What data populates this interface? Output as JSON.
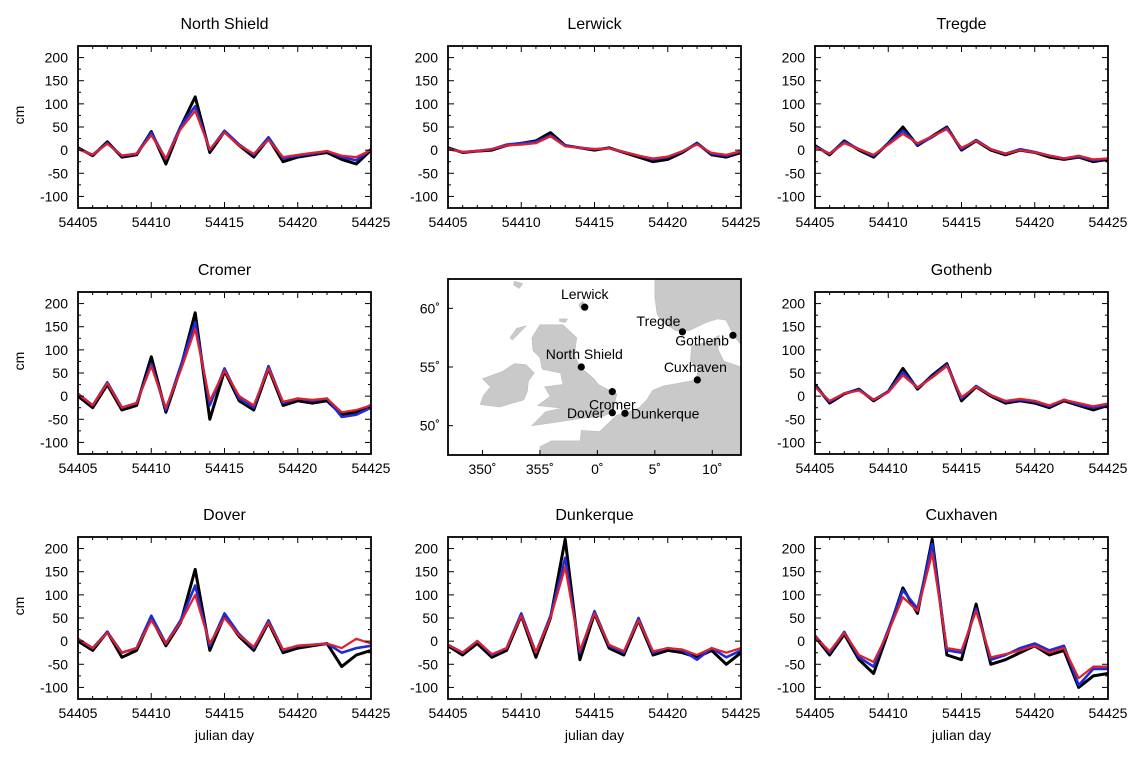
{
  "figure": {
    "ylabel": "cm",
    "xlabel": "julian day"
  },
  "chart_data": [
    {
      "type": "line",
      "title": "North Shield",
      "xlim": [
        54405,
        54425
      ],
      "ylim": [
        -125,
        225
      ],
      "xticks": [
        54405,
        54410,
        54415,
        54420,
        54425
      ],
      "yticks": [
        -100,
        -50,
        0,
        50,
        100,
        150,
        200
      ],
      "x": [
        54405,
        54406,
        54407,
        54408,
        54409,
        54410,
        54411,
        54412,
        54413,
        54414,
        54415,
        54416,
        54417,
        54418,
        54419,
        54420,
        54421,
        54422,
        54423,
        54424,
        54425
      ],
      "series": [
        {
          "values": [
            5,
            -12,
            18,
            -15,
            -10,
            40,
            -30,
            50,
            115,
            -5,
            40,
            10,
            -15,
            25,
            -25,
            -15,
            -10,
            -5,
            -20,
            -30,
            0
          ]
        },
        {
          "values": [
            3,
            -10,
            15,
            -12,
            -8,
            38,
            -20,
            52,
            95,
            0,
            42,
            12,
            -10,
            28,
            -18,
            -12,
            -8,
            -2,
            -15,
            -22,
            2
          ]
        },
        {
          "values": [
            2,
            -10,
            14,
            -12,
            -8,
            32,
            -18,
            45,
            85,
            2,
            38,
            10,
            -8,
            22,
            -15,
            -10,
            -6,
            -2,
            -12,
            -15,
            0
          ]
        }
      ]
    },
    {
      "type": "line",
      "title": "Lerwick",
      "xlim": [
        54405,
        54425
      ],
      "ylim": [
        -125,
        225
      ],
      "xticks": [
        54405,
        54410,
        54415,
        54420,
        54425
      ],
      "yticks": [
        -100,
        -50,
        0,
        50,
        100,
        150,
        200
      ],
      "x": [
        54405,
        54406,
        54407,
        54408,
        54409,
        54410,
        54411,
        54412,
        54413,
        54414,
        54415,
        54416,
        54417,
        54418,
        54419,
        54420,
        54421,
        54422,
        54423,
        54424,
        54425
      ],
      "series": [
        {
          "values": [
            5,
            -5,
            -2,
            0,
            10,
            15,
            20,
            38,
            10,
            5,
            0,
            5,
            -5,
            -15,
            -25,
            -20,
            -5,
            15,
            -10,
            -15,
            -5
          ]
        },
        {
          "values": [
            3,
            -4,
            -2,
            2,
            12,
            15,
            18,
            32,
            10,
            5,
            2,
            4,
            -4,
            -12,
            -20,
            -15,
            -3,
            14,
            -8,
            -12,
            -3
          ]
        },
        {
          "values": [
            2,
            -4,
            -2,
            2,
            10,
            12,
            15,
            30,
            8,
            5,
            2,
            4,
            -4,
            -12,
            -18,
            -14,
            -2,
            12,
            -6,
            -10,
            -2
          ]
        }
      ]
    },
    {
      "type": "line",
      "title": "Tregde",
      "xlim": [
        54405,
        54425
      ],
      "ylim": [
        -125,
        225
      ],
      "xticks": [
        54405,
        54410,
        54415,
        54420,
        54425
      ],
      "yticks": [
        -100,
        -50,
        0,
        50,
        100,
        150,
        200
      ],
      "x": [
        54405,
        54406,
        54407,
        54408,
        54409,
        54410,
        54411,
        54412,
        54413,
        54414,
        54415,
        54416,
        54417,
        54418,
        54419,
        54420,
        54421,
        54422,
        54423,
        54424,
        54425
      ],
      "series": [
        {
          "values": [
            10,
            -10,
            20,
            0,
            -15,
            15,
            50,
            10,
            30,
            50,
            0,
            20,
            0,
            -10,
            0,
            -5,
            -15,
            -20,
            -15,
            -25,
            -20
          ]
        },
        {
          "values": [
            8,
            -8,
            18,
            2,
            -12,
            14,
            42,
            12,
            28,
            48,
            2,
            22,
            2,
            -8,
            2,
            -4,
            -12,
            -18,
            -14,
            -22,
            -18
          ]
        },
        {
          "values": [
            6,
            -8,
            15,
            2,
            -10,
            12,
            35,
            15,
            30,
            45,
            5,
            20,
            2,
            -8,
            0,
            -5,
            -12,
            -18,
            -12,
            -20,
            -18
          ]
        }
      ]
    },
    {
      "type": "line",
      "title": "Cromer",
      "xlim": [
        54405,
        54425
      ],
      "ylim": [
        -125,
        225
      ],
      "xticks": [
        54405,
        54410,
        54415,
        54420,
        54425
      ],
      "yticks": [
        -100,
        -50,
        0,
        50,
        100,
        150,
        200
      ],
      "x": [
        54405,
        54406,
        54407,
        54408,
        54409,
        54410,
        54411,
        54412,
        54413,
        54414,
        54415,
        54416,
        54417,
        54418,
        54419,
        54420,
        54421,
        54422,
        54423,
        54424,
        54425
      ],
      "series": [
        {
          "values": [
            0,
            -25,
            25,
            -30,
            -20,
            85,
            -35,
            60,
            180,
            -50,
            55,
            -10,
            -30,
            60,
            -20,
            -10,
            -15,
            -10,
            -40,
            -35,
            -20
          ]
        },
        {
          "values": [
            5,
            -20,
            30,
            -25,
            -15,
            70,
            -30,
            65,
            160,
            -20,
            60,
            -5,
            -25,
            65,
            -15,
            -5,
            -10,
            -5,
            -45,
            -40,
            -25
          ]
        },
        {
          "values": [
            5,
            -20,
            28,
            -25,
            -15,
            65,
            -25,
            55,
            145,
            -10,
            55,
            0,
            -20,
            60,
            -12,
            -5,
            -8,
            -5,
            -35,
            -30,
            -20
          ]
        }
      ]
    },
    {
      "type": "line",
      "title": "Gothenb",
      "xlim": [
        54405,
        54425
      ],
      "ylim": [
        -125,
        225
      ],
      "xticks": [
        54405,
        54410,
        54415,
        54420,
        54425
      ],
      "yticks": [
        -100,
        -50,
        0,
        50,
        100,
        150,
        200
      ],
      "x": [
        54405,
        54406,
        54407,
        54408,
        54409,
        54410,
        54411,
        54412,
        54413,
        54414,
        54415,
        54416,
        54417,
        54418,
        54419,
        54420,
        54421,
        54422,
        54423,
        54424,
        54425
      ],
      "series": [
        {
          "values": [
            25,
            -15,
            5,
            15,
            -10,
            10,
            60,
            15,
            45,
            70,
            -10,
            20,
            0,
            -15,
            -10,
            -15,
            -25,
            -10,
            -20,
            -30,
            -20
          ]
        },
        {
          "values": [
            22,
            -12,
            6,
            14,
            -8,
            10,
            52,
            18,
            42,
            68,
            -5,
            22,
            2,
            -12,
            -8,
            -12,
            -22,
            -8,
            -18,
            -25,
            -18
          ]
        },
        {
          "values": [
            20,
            -10,
            6,
            12,
            -8,
            8,
            45,
            18,
            40,
            65,
            -2,
            20,
            2,
            -10,
            -6,
            -10,
            -20,
            -8,
            -15,
            -22,
            -16
          ]
        }
      ]
    },
    {
      "type": "line",
      "title": "Dover",
      "xlim": [
        54405,
        54425
      ],
      "ylim": [
        -125,
        225
      ],
      "xticks": [
        54405,
        54410,
        54415,
        54420,
        54425
      ],
      "yticks": [
        -100,
        -50,
        0,
        50,
        100,
        150,
        200
      ],
      "x": [
        54405,
        54406,
        54407,
        54408,
        54409,
        54410,
        54411,
        54412,
        54413,
        54414,
        54415,
        54416,
        54417,
        54418,
        54419,
        54420,
        54421,
        54422,
        54423,
        54424,
        54425
      ],
      "series": [
        {
          "values": [
            0,
            -20,
            20,
            -35,
            -20,
            50,
            -10,
            40,
            155,
            -20,
            55,
            10,
            -20,
            40,
            -25,
            -15,
            -10,
            -5,
            -55,
            -30,
            -20
          ]
        },
        {
          "values": [
            5,
            -15,
            20,
            -25,
            -15,
            55,
            -5,
            45,
            120,
            -10,
            60,
            15,
            -15,
            45,
            -20,
            -10,
            -8,
            -5,
            -25,
            -15,
            -10
          ]
        },
        {
          "values": [
            5,
            -15,
            18,
            -25,
            -15,
            45,
            -5,
            40,
            100,
            -5,
            50,
            12,
            -12,
            40,
            -18,
            -10,
            -8,
            -5,
            -15,
            5,
            -5
          ]
        }
      ]
    },
    {
      "type": "line",
      "title": "Dunkerque",
      "xlim": [
        54405,
        54425
      ],
      "ylim": [
        -125,
        225
      ],
      "xticks": [
        54405,
        54410,
        54415,
        54420,
        54425
      ],
      "yticks": [
        -100,
        -50,
        0,
        50,
        100,
        150,
        200
      ],
      "x": [
        54405,
        54406,
        54407,
        54408,
        54409,
        54410,
        54411,
        54412,
        54413,
        54414,
        54415,
        54416,
        54417,
        54418,
        54419,
        54420,
        54421,
        54422,
        54423,
        54424,
        54425
      ],
      "series": [
        {
          "values": [
            -10,
            -30,
            -5,
            -35,
            -20,
            55,
            -35,
            50,
            220,
            -40,
            60,
            -15,
            -30,
            45,
            -30,
            -20,
            -25,
            -35,
            -20,
            -50,
            -25
          ]
        },
        {
          "values": [
            -8,
            -25,
            0,
            -30,
            -15,
            60,
            -25,
            55,
            180,
            -25,
            65,
            -10,
            -25,
            50,
            -25,
            -15,
            -20,
            -40,
            -15,
            -35,
            -20
          ]
        },
        {
          "values": [
            -8,
            -25,
            0,
            -28,
            -15,
            55,
            -25,
            50,
            160,
            -20,
            60,
            -8,
            -22,
            45,
            -22,
            -15,
            -18,
            -30,
            -15,
            -25,
            -15
          ]
        }
      ]
    },
    {
      "type": "line",
      "title": "Cuxhaven",
      "xlim": [
        54405,
        54425
      ],
      "ylim": [
        -125,
        225
      ],
      "xticks": [
        54405,
        54410,
        54415,
        54420,
        54425
      ],
      "yticks": [
        -100,
        -50,
        0,
        50,
        100,
        150,
        200
      ],
      "x": [
        54405,
        54406,
        54407,
        54408,
        54409,
        54410,
        54411,
        54412,
        54413,
        54414,
        54415,
        54416,
        54417,
        54418,
        54419,
        54420,
        54421,
        54422,
        54423,
        54424,
        54425
      ],
      "series": [
        {
          "values": [
            10,
            -30,
            15,
            -40,
            -70,
            20,
            115,
            60,
            220,
            -30,
            -40,
            80,
            -50,
            -40,
            -25,
            -10,
            -30,
            -20,
            -100,
            -75,
            -70
          ]
        },
        {
          "values": [
            12,
            -25,
            20,
            -35,
            -55,
            25,
            110,
            70,
            210,
            -20,
            -25,
            70,
            -40,
            -30,
            -15,
            -5,
            -20,
            -10,
            -95,
            -60,
            -60
          ]
        },
        {
          "values": [
            10,
            -22,
            18,
            -30,
            -45,
            20,
            95,
            65,
            190,
            -15,
            -20,
            65,
            -35,
            -28,
            -20,
            -10,
            -25,
            -15,
            -80,
            -55,
            -55
          ]
        }
      ]
    }
  ],
  "map": {
    "lon_ticks": [
      "350˚",
      "355˚",
      "0˚",
      "5˚",
      "10˚"
    ],
    "lat_ticks": [
      "60˚",
      "55˚",
      "50˚"
    ],
    "lon_range": [
      -13,
      12.5
    ],
    "lat_range": [
      47.5,
      62.5
    ],
    "stations": [
      {
        "name": "Lerwick",
        "lon": -1.1,
        "lat": 60.1
      },
      {
        "name": "Tregde",
        "lon": 7.4,
        "lat": 58.0
      },
      {
        "name": "Gothenb",
        "lon": 11.8,
        "lat": 57.7
      },
      {
        "name": "North Shield",
        "lon": -1.4,
        "lat": 55.0
      },
      {
        "name": "Cromer",
        "lon": 1.3,
        "lat": 52.9
      },
      {
        "name": "Cuxhaven",
        "lon": 8.7,
        "lat": 53.9
      },
      {
        "name": "Dover",
        "lon": 1.3,
        "lat": 51.1
      },
      {
        "name": "Dunkerque",
        "lon": 2.4,
        "lat": 51.05
      }
    ]
  },
  "colors": {
    "obs": "#000000",
    "model_a": "#1f2bd6",
    "model_b": "#e0202a",
    "land": "#c9c9c9"
  }
}
